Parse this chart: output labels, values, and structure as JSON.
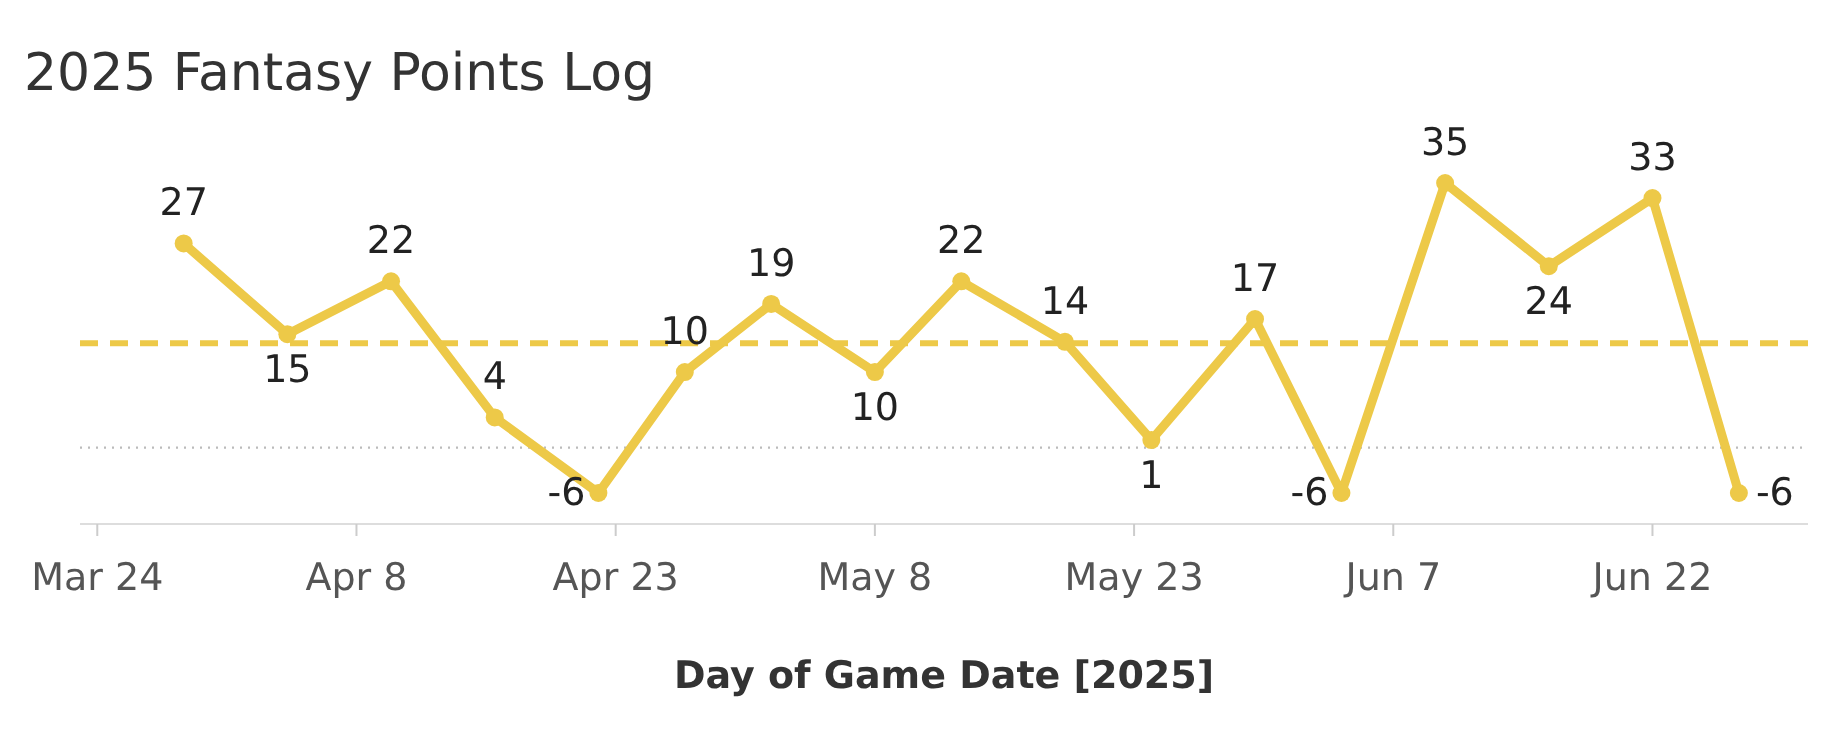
{
  "chart_data": {
    "type": "line",
    "title": "2025 Fantasy Points Log",
    "xlabel": "Day of Game Date [2025]",
    "x": [
      "2025-03-29",
      "2025-04-04",
      "2025-04-10",
      "2025-04-16",
      "2025-04-22",
      "2025-04-27",
      "2025-05-02",
      "2025-05-08",
      "2025-05-13",
      "2025-05-19",
      "2025-05-24",
      "2025-05-30",
      "2025-06-04",
      "2025-06-10",
      "2025-06-16",
      "2025-06-22",
      "2025-06-27"
    ],
    "series": [
      {
        "color": "#edc948",
        "values": [
          27,
          15,
          22,
          4,
          -6,
          10,
          19,
          10,
          22,
          14,
          1,
          17,
          -6,
          35,
          24,
          33,
          -6
        ]
      }
    ],
    "xlim": [
      "2025-03-23",
      "2025-07-01"
    ],
    "xticks": [
      {
        "value": "2025-03-24",
        "label": "Mar 24"
      },
      {
        "value": "2025-04-08",
        "label": "Apr 8"
      },
      {
        "value": "2025-04-23",
        "label": "Apr 23"
      },
      {
        "value": "2025-05-08",
        "label": "May 8"
      },
      {
        "value": "2025-05-23",
        "label": "May 23"
      },
      {
        "value": "2025-06-07",
        "label": "Jun 7"
      },
      {
        "value": "2025-06-22",
        "label": "Jun 22"
      }
    ],
    "tick_labels": "x",
    "marker": "circle",
    "line_style": "solid",
    "data_labels": true,
    "ref_lines": [
      {
        "axis": "y",
        "value": 13.82,
        "color": "#edc948",
        "line_style": "dashed"
      },
      {
        "axis": "y",
        "value": 0,
        "color": "#bbbbbb",
        "line_style": "dotted"
      }
    ]
  }
}
